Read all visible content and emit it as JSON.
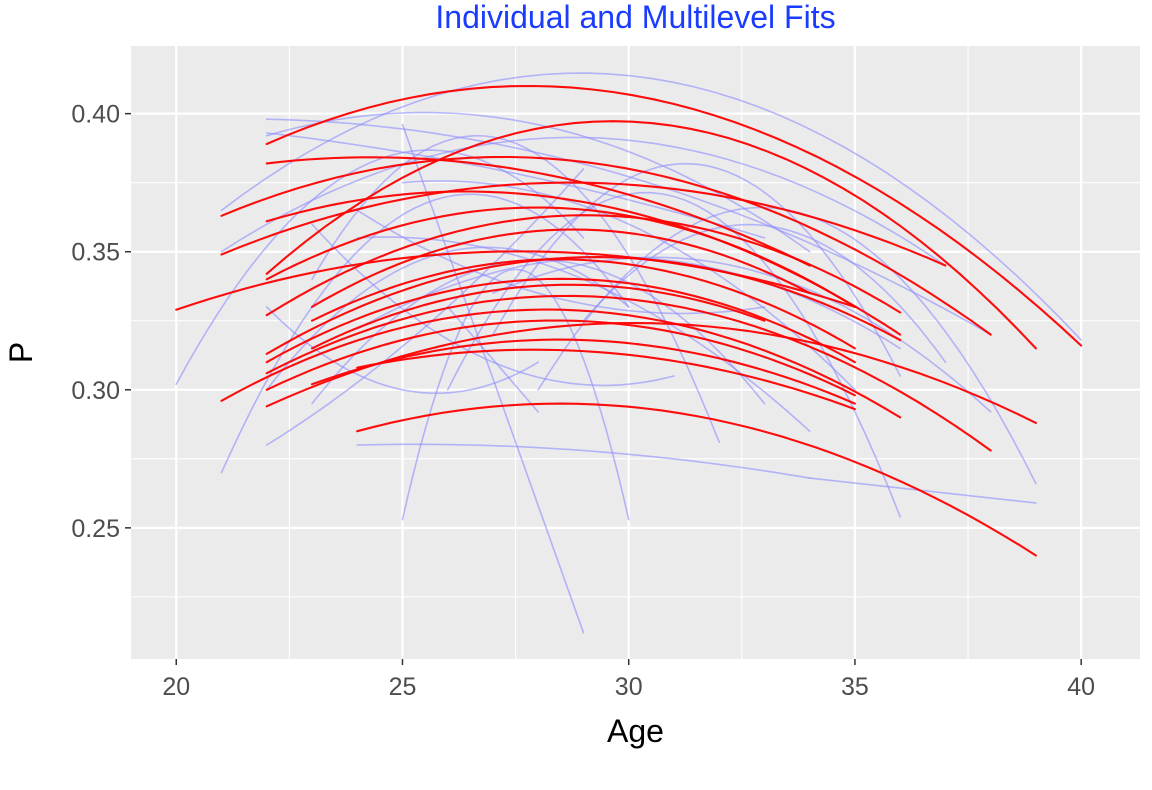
{
  "chart_data": {
    "type": "line",
    "title": "Individual and Multilevel Fits",
    "xlabel": "Age",
    "ylabel": "P",
    "xlim": [
      19,
      41.3
    ],
    "ylim": [
      0.2025,
      0.4245
    ],
    "x_ticks": [
      "20",
      "25",
      "30",
      "35",
      "40"
    ],
    "y_ticks": [
      "0.25",
      "0.30",
      "0.35",
      "0.40"
    ],
    "grid": true,
    "legend": "none",
    "colors": {
      "title": "#1a3cff",
      "panel": "#ebebeb",
      "grid": "#ffffff",
      "individual": "#8c8cff",
      "multilevel": "#ff0000"
    },
    "series": [
      {
        "group": "individual",
        "x": [
          21,
          28,
          40
        ],
        "y": [
          0.365,
          0.414,
          0.318
        ]
      },
      {
        "group": "individual",
        "x": [
          22,
          33,
          38
        ],
        "y": [
          0.398,
          0.36,
          0.32
        ]
      },
      {
        "group": "individual",
        "x": [
          22,
          28,
          34
        ],
        "y": [
          0.392,
          0.396,
          0.35
        ]
      },
      {
        "group": "individual",
        "x": [
          22,
          27,
          33
        ],
        "y": [
          0.393,
          0.38,
          0.355
        ]
      },
      {
        "group": "individual",
        "x": [
          21,
          31,
          37
        ],
        "y": [
          0.35,
          0.388,
          0.345
        ]
      },
      {
        "group": "individual",
        "x": [
          20,
          24,
          29
        ],
        "y": [
          0.302,
          0.38,
          0.355
        ]
      },
      {
        "group": "individual",
        "x": [
          21,
          26,
          30
        ],
        "y": [
          0.27,
          0.37,
          0.33
        ]
      },
      {
        "group": "individual",
        "x": [
          22,
          26,
          29
        ],
        "y": [
          0.28,
          0.33,
          0.38
        ]
      },
      {
        "group": "individual",
        "x": [
          25,
          29
        ],
        "y": [
          0.396,
          0.212
        ]
      },
      {
        "group": "individual",
        "x": [
          25,
          27,
          30
        ],
        "y": [
          0.253,
          0.34,
          0.253
        ]
      },
      {
        "group": "individual",
        "x": [
          24,
          29,
          34
        ],
        "y": [
          0.28,
          0.278,
          0.268
        ]
      },
      {
        "group": "individual",
        "x": [
          34,
          39
        ],
        "y": [
          0.268,
          0.259
        ]
      },
      {
        "group": "individual",
        "x": [
          24,
          28,
          33
        ],
        "y": [
          0.365,
          0.335,
          0.33
        ]
      },
      {
        "group": "individual",
        "x": [
          26,
          31,
          36
        ],
        "y": [
          0.3,
          0.37,
          0.254
        ]
      },
      {
        "group": "individual",
        "x": [
          23,
          28,
          32
        ],
        "y": [
          0.34,
          0.385,
          0.281
        ]
      },
      {
        "group": "individual",
        "x": [
          27,
          32,
          36
        ],
        "y": [
          0.32,
          0.38,
          0.305
        ]
      },
      {
        "group": "individual",
        "x": [
          28,
          33,
          39
        ],
        "y": [
          0.3,
          0.366,
          0.266
        ]
      },
      {
        "group": "individual",
        "x": [
          25,
          30,
          35
        ],
        "y": [
          0.375,
          0.36,
          0.3
        ]
      },
      {
        "group": "individual",
        "x": [
          23,
          29,
          33
        ],
        "y": [
          0.295,
          0.345,
          0.295
        ]
      },
      {
        "group": "individual",
        "x": [
          22,
          25,
          28
        ],
        "y": [
          0.33,
          0.3,
          0.31
        ]
      },
      {
        "group": "individual",
        "x": [
          26,
          28
        ],
        "y": [
          0.33,
          0.292
        ]
      },
      {
        "group": "individual",
        "x": [
          24,
          29,
          34
        ],
        "y": [
          0.355,
          0.34,
          0.285
        ]
      },
      {
        "group": "individual",
        "x": [
          27,
          33,
          38
        ],
        "y": [
          0.335,
          0.342,
          0.292
        ]
      },
      {
        "group": "individual",
        "x": [
          29,
          34,
          37
        ],
        "y": [
          0.325,
          0.355,
          0.31
        ]
      },
      {
        "group": "individual",
        "x": [
          23,
          27,
          31
        ],
        "y": [
          0.36,
          0.31,
          0.305
        ]
      },
      {
        "group": "individual",
        "x": [
          24,
          30,
          36
        ],
        "y": [
          0.322,
          0.348,
          0.315
        ]
      },
      {
        "group": "individual",
        "x": [
          22,
          26,
          30
        ],
        "y": [
          0.3,
          0.35,
          0.33
        ]
      },
      {
        "group": "multilevel",
        "x": [
          22,
          28,
          40
        ],
        "y": [
          0.389,
          0.41,
          0.316
        ]
      },
      {
        "group": "multilevel",
        "x": [
          22,
          28.5,
          39
        ],
        "y": [
          0.342,
          0.396,
          0.315
        ]
      },
      {
        "group": "multilevel",
        "x": [
          22,
          25,
          34
        ],
        "y": [
          0.382,
          0.384,
          0.345
        ]
      },
      {
        "group": "multilevel",
        "x": [
          21,
          30,
          38
        ],
        "y": [
          0.363,
          0.38,
          0.32
        ]
      },
      {
        "group": "multilevel",
        "x": [
          21,
          29,
          37
        ],
        "y": [
          0.349,
          0.375,
          0.345
        ]
      },
      {
        "group": "multilevel",
        "x": [
          22,
          29,
          36
        ],
        "y": [
          0.361,
          0.368,
          0.32
        ]
      },
      {
        "group": "multilevel",
        "x": [
          22,
          28,
          35
        ],
        "y": [
          0.34,
          0.366,
          0.33
        ]
      },
      {
        "group": "multilevel",
        "x": [
          22,
          28.5,
          36
        ],
        "y": [
          0.327,
          0.363,
          0.328
        ]
      },
      {
        "group": "multilevel",
        "x": [
          23,
          29,
          34
        ],
        "y": [
          0.33,
          0.358,
          0.335
        ]
      },
      {
        "group": "multilevel",
        "x": [
          20,
          27,
          35
        ],
        "y": [
          0.329,
          0.35,
          0.33
        ]
      },
      {
        "group": "multilevel",
        "x": [
          22,
          29,
          36
        ],
        "y": [
          0.313,
          0.348,
          0.318
        ]
      },
      {
        "group": "multilevel",
        "x": [
          23,
          29,
          35
        ],
        "y": [
          0.325,
          0.347,
          0.315
        ]
      },
      {
        "group": "multilevel",
        "x": [
          22,
          28,
          35
        ],
        "y": [
          0.31,
          0.34,
          0.31
        ]
      },
      {
        "group": "multilevel",
        "x": [
          23,
          28.5,
          33
        ],
        "y": [
          0.315,
          0.338,
          0.325
        ]
      },
      {
        "group": "multilevel",
        "x": [
          22,
          28.5,
          38
        ],
        "y": [
          0.306,
          0.334,
          0.278
        ]
      },
      {
        "group": "multilevel",
        "x": [
          21,
          28.5,
          36
        ],
        "y": [
          0.296,
          0.329,
          0.29
        ]
      },
      {
        "group": "multilevel",
        "x": [
          22,
          28,
          35
        ],
        "y": [
          0.3,
          0.325,
          0.298
        ]
      },
      {
        "group": "multilevel",
        "x": [
          22,
          28.5,
          39
        ],
        "y": [
          0.294,
          0.323,
          0.288
        ]
      },
      {
        "group": "multilevel",
        "x": [
          23,
          29,
          35
        ],
        "y": [
          0.302,
          0.318,
          0.295
        ]
      },
      {
        "group": "multilevel",
        "x": [
          24,
          29,
          35
        ],
        "y": [
          0.308,
          0.314,
          0.293
        ]
      },
      {
        "group": "multilevel",
        "x": [
          24,
          28.5,
          39
        ],
        "y": [
          0.285,
          0.295,
          0.24
        ]
      }
    ]
  }
}
